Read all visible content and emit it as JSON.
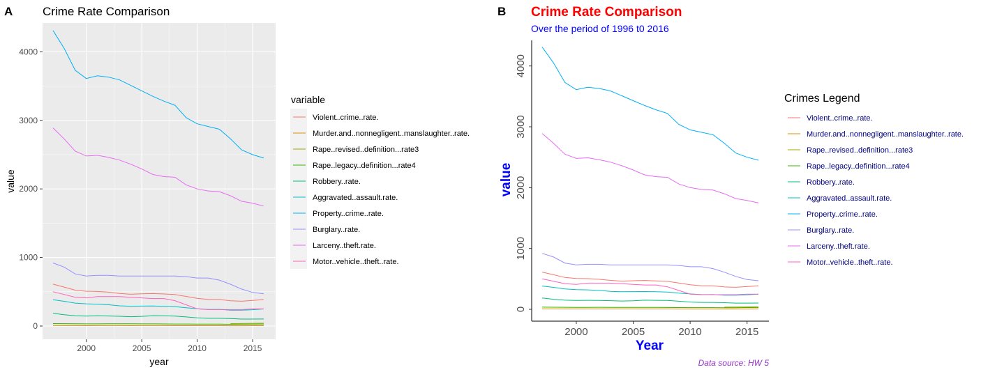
{
  "chart_data": [
    {
      "type": "line",
      "panel_tag": "A",
      "title": "Crime Rate Comparison",
      "subtitle": "",
      "xlabel": "year",
      "ylabel": "value",
      "xlim": [
        1997,
        2016
      ],
      "ylim": [
        0,
        4420
      ],
      "xticks": [
        2000,
        2005,
        2010,
        2015
      ],
      "yticks": [
        0,
        1000,
        2000,
        3000,
        4000
      ],
      "grid": true,
      "legend_title": "variable",
      "legend_position": "right",
      "caption": ""
    },
    {
      "type": "line",
      "panel_tag": "B",
      "title": "Crime Rate Comparison",
      "subtitle": "Over the period of 1996 t0 2016",
      "xlabel": "Year",
      "ylabel": "value",
      "xlim": [
        1997,
        2016
      ],
      "ylim": [
        0,
        4420
      ],
      "xticks": [
        2000,
        2005,
        2010,
        2015
      ],
      "yticks": [
        0,
        1000,
        2000,
        3000,
        4000
      ],
      "grid": false,
      "legend_title": "Crimes Legend",
      "legend_position": "right",
      "caption": "Data source: HW 5"
    }
  ],
  "x": [
    1997,
    1998,
    1999,
    2000,
    2001,
    2002,
    2003,
    2004,
    2005,
    2006,
    2007,
    2008,
    2009,
    2010,
    2011,
    2012,
    2013,
    2014,
    2015,
    2016
  ],
  "series": [
    {
      "name": "Violent..crime..rate.",
      "color": "#F8766D",
      "values": [
        611,
        568,
        523,
        507,
        504,
        494,
        475,
        463,
        469,
        474,
        467,
        459,
        432,
        404,
        387,
        387,
        368,
        362,
        373,
        386
      ]
    },
    {
      "name": "Murder.and..nonnegligent..manslaughter..rate.",
      "color": "#D89000",
      "values": [
        6.8,
        6.3,
        5.7,
        5.5,
        5.6,
        5.6,
        5.7,
        5.5,
        5.6,
        5.8,
        5.7,
        5.4,
        5.0,
        4.8,
        4.7,
        4.7,
        4.5,
        4.4,
        4.9,
        5.3
      ]
    },
    {
      "name": "Rape..revised..definition...rate3",
      "color": "#A3A500",
      "values": [
        null,
        null,
        null,
        null,
        null,
        null,
        null,
        null,
        null,
        null,
        null,
        null,
        null,
        null,
        null,
        null,
        35.9,
        37.0,
        39.3,
        40.4
      ]
    },
    {
      "name": "Rape..legacy..definition...rate4",
      "color": "#39B600",
      "values": [
        35.9,
        34.5,
        32.8,
        32.0,
        31.8,
        33.1,
        32.3,
        32.4,
        31.8,
        31.6,
        30.6,
        29.8,
        29.1,
        27.7,
        27.0,
        27.1,
        25.9,
        26.6,
        28.1,
        29.6
      ]
    },
    {
      "name": "Robbery..rate.",
      "color": "#00BF7D",
      "values": [
        186,
        165,
        150,
        145,
        148,
        146,
        142,
        136,
        141,
        150,
        148,
        145,
        133,
        119,
        113,
        113,
        109,
        102,
        102,
        103
      ]
    },
    {
      "name": "Aggravated..assault.rate.",
      "color": "#00BFC4",
      "values": [
        383,
        361,
        334,
        324,
        319,
        310,
        295,
        289,
        291,
        292,
        288,
        283,
        266,
        253,
        242,
        243,
        232,
        232,
        238,
        249
      ]
    },
    {
      "name": "Property..crime..rate.",
      "color": "#00B0F6",
      "values": [
        4310,
        4050,
        3730,
        3610,
        3650,
        3630,
        3590,
        3510,
        3430,
        3350,
        3280,
        3220,
        3040,
        2950,
        2910,
        2870,
        2730,
        2570,
        2500,
        2450
      ]
    },
    {
      "name": "Burglary..rate.",
      "color": "#9590FF",
      "values": [
        920,
        860,
        760,
        730,
        740,
        740,
        730,
        730,
        730,
        730,
        730,
        730,
        720,
        700,
        700,
        670,
        610,
        540,
        490,
        470
      ]
    },
    {
      "name": "Larceny..theft.rate.",
      "color": "#E76BF3",
      "values": [
        2890,
        2730,
        2550,
        2480,
        2490,
        2460,
        2420,
        2360,
        2290,
        2210,
        2180,
        2170,
        2060,
        2000,
        1970,
        1960,
        1900,
        1820,
        1790,
        1750
      ]
    },
    {
      "name": "Motor..vehicle..theft..rate.",
      "color": "#FF62BC",
      "values": [
        500,
        460,
        420,
        410,
        430,
        430,
        430,
        420,
        410,
        400,
        400,
        370,
        310,
        250,
        240,
        240,
        240,
        240,
        250,
        250
      ]
    }
  ]
}
